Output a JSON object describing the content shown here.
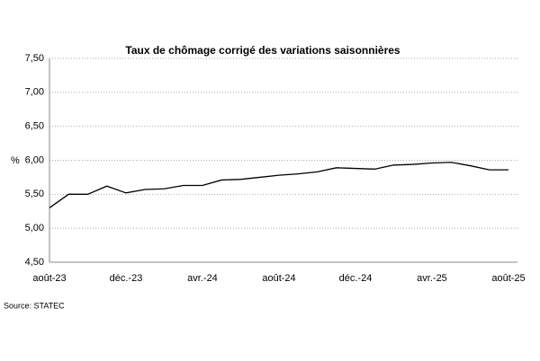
{
  "chart_data": {
    "type": "line",
    "title": "Taux de chômage corrigé des variations saisonnières",
    "y_label": "%",
    "source": "Source: STATEC",
    "categories": [
      "août-23",
      null,
      null,
      null,
      "déc.-23",
      null,
      null,
      null,
      "avr.-24",
      null,
      null,
      null,
      "août-24",
      null,
      null,
      null,
      "déc.-24",
      null,
      null,
      null,
      "avr.-25",
      null,
      null,
      null,
      "août-25"
    ],
    "series": [
      {
        "name": "Taux de chômage",
        "color": "#000000",
        "values": [
          5.3,
          5.5,
          5.5,
          5.62,
          5.52,
          5.57,
          5.58,
          5.63,
          5.63,
          5.71,
          5.72,
          5.75,
          5.78,
          5.8,
          5.83,
          5.89,
          5.88,
          5.87,
          5.93,
          5.94,
          5.96,
          5.97,
          5.92,
          5.86,
          5.86
        ]
      }
    ],
    "ylim": [
      4.5,
      7.5
    ],
    "yticks": [
      {
        "value": 4.5,
        "label": "4,50"
      },
      {
        "value": 5,
        "label": "5,00"
      },
      {
        "value": 5.5,
        "label": "5,50"
      },
      {
        "value": 6,
        "label": "6,00"
      },
      {
        "value": 6.5,
        "label": "6,50"
      },
      {
        "value": 7,
        "label": "7,00"
      },
      {
        "value": 7.5,
        "label": "7,50"
      }
    ],
    "grid": true
  }
}
